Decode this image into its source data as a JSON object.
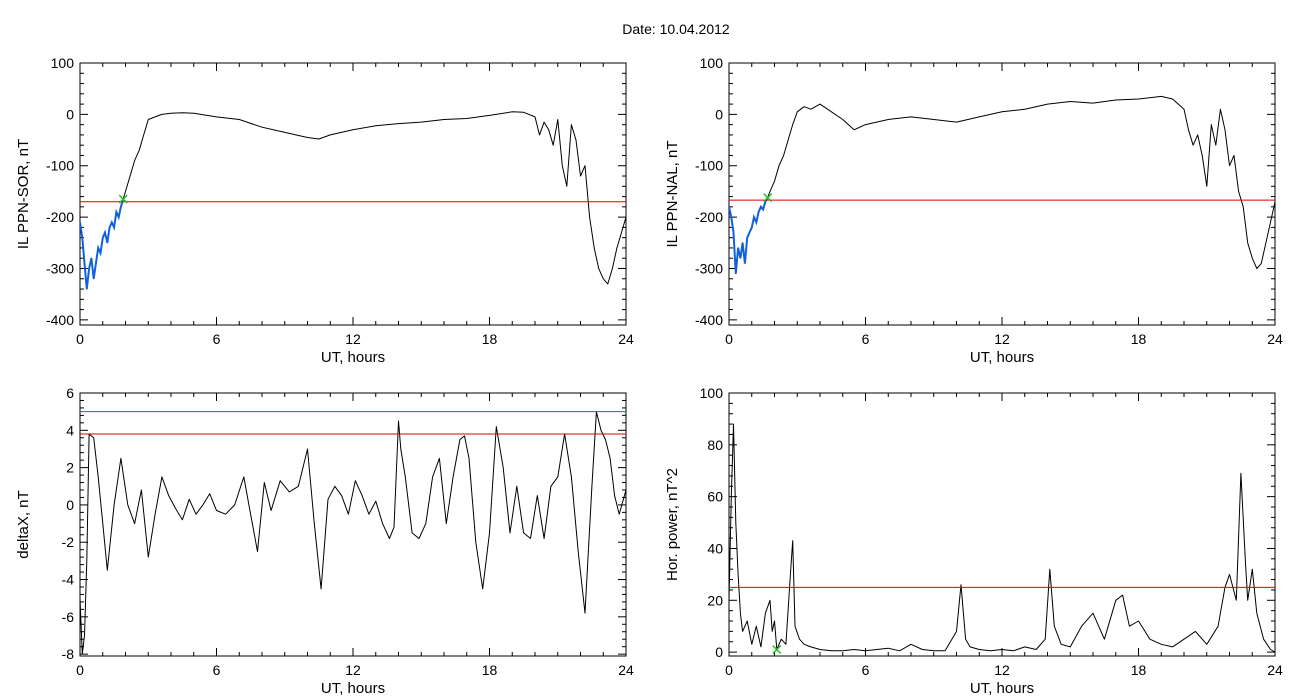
{
  "figure": {
    "title": "Date:  10.04.2012"
  },
  "colors": {
    "data": "#000000",
    "threshold": "#e00000",
    "highlight": "#1060e0",
    "marker": "#20c020",
    "upper_threshold": "#008080"
  },
  "chart_data": [
    {
      "id": "ppn-sor",
      "type": "line",
      "title": "",
      "xlabel": "UT, hours",
      "ylabel": "IL PPN-SOR, nT",
      "xlim": [
        0,
        24
      ],
      "ylim": [
        -410,
        100
      ],
      "xticks": [
        0,
        6,
        12,
        18,
        24
      ],
      "yticks": [
        -400,
        -300,
        -200,
        -100,
        0,
        100
      ],
      "grid": false,
      "threshold": -170,
      "highlight_range": [
        0,
        1.9
      ],
      "markers": [
        {
          "x": 1.9,
          "y": -165
        }
      ],
      "series": [
        {
          "x": [
            0,
            0.1,
            0.2,
            0.3,
            0.4,
            0.5,
            0.6,
            0.7,
            0.8,
            0.9,
            1.0,
            1.1,
            1.2,
            1.3,
            1.4,
            1.5,
            1.6,
            1.7,
            1.8,
            1.9,
            2.0,
            2.2,
            2.4,
            2.6,
            2.8,
            3.0,
            3.3,
            3.6,
            4.0,
            4.5,
            5.0,
            6.0,
            7.0,
            8.0,
            9.0,
            10.0,
            10.5,
            11.0,
            12.0,
            13.0,
            14.0,
            15.0,
            16.0,
            17.0,
            18.0,
            19.0,
            19.5,
            20.0,
            20.2,
            20.4,
            20.6,
            20.8,
            21.0,
            21.2,
            21.4,
            21.6,
            21.8,
            22.0,
            22.2,
            22.4,
            22.6,
            22.8,
            23.0,
            23.2,
            23.4,
            23.6,
            23.8,
            24.0
          ],
          "y": [
            -210,
            -240,
            -290,
            -340,
            -300,
            -280,
            -320,
            -290,
            -260,
            -270,
            -240,
            -230,
            -250,
            -220,
            -210,
            -220,
            -190,
            -200,
            -180,
            -165,
            -150,
            -120,
            -90,
            -70,
            -40,
            -10,
            -5,
            0,
            2,
            3,
            2,
            -5,
            -10,
            -25,
            -35,
            -45,
            -48,
            -40,
            -30,
            -22,
            -18,
            -15,
            -10,
            -8,
            -2,
            5,
            4,
            -5,
            -40,
            -15,
            -30,
            -60,
            -10,
            -100,
            -140,
            -20,
            -50,
            -120,
            -100,
            -200,
            -260,
            -300,
            -320,
            -330,
            -300,
            -260,
            -230,
            -200
          ]
        }
      ]
    },
    {
      "id": "ppn-nal",
      "type": "line",
      "title": "",
      "xlabel": "UT, hours",
      "ylabel": "IL PPN-NAL, nT",
      "xlim": [
        0,
        24
      ],
      "ylim": [
        -410,
        100
      ],
      "xticks": [
        0,
        6,
        12,
        18,
        24
      ],
      "yticks": [
        -400,
        -300,
        -200,
        -100,
        0,
        100
      ],
      "grid": false,
      "threshold": -167,
      "highlight_range": [
        0,
        1.7
      ],
      "markers": [
        {
          "x": 1.7,
          "y": -162
        }
      ],
      "series": [
        {
          "x": [
            0,
            0.1,
            0.2,
            0.3,
            0.4,
            0.5,
            0.6,
            0.7,
            0.8,
            0.9,
            1.0,
            1.1,
            1.2,
            1.3,
            1.4,
            1.5,
            1.6,
            1.7,
            1.8,
            2.0,
            2.2,
            2.4,
            2.6,
            2.8,
            3.0,
            3.3,
            3.6,
            4.0,
            4.5,
            5.0,
            5.5,
            6.0,
            7.0,
            8.0,
            9.0,
            10.0,
            11.0,
            12.0,
            13.0,
            14.0,
            15.0,
            16.0,
            17.0,
            18.0,
            19.0,
            19.5,
            20.0,
            20.2,
            20.4,
            20.6,
            20.8,
            21.0,
            21.2,
            21.4,
            21.6,
            21.8,
            22.0,
            22.2,
            22.4,
            22.6,
            22.8,
            23.0,
            23.2,
            23.4,
            23.6,
            23.8,
            24.0
          ],
          "y": [
            -180,
            -200,
            -230,
            -310,
            -260,
            -280,
            -250,
            -290,
            -240,
            -230,
            -220,
            -200,
            -210,
            -190,
            -180,
            -185,
            -170,
            -162,
            -150,
            -130,
            -100,
            -80,
            -50,
            -20,
            5,
            15,
            10,
            20,
            5,
            -10,
            -30,
            -20,
            -10,
            -5,
            -10,
            -15,
            -5,
            5,
            10,
            20,
            25,
            22,
            28,
            30,
            35,
            30,
            10,
            -30,
            -60,
            -40,
            -80,
            -140,
            -20,
            -60,
            10,
            -30,
            -100,
            -80,
            -150,
            -180,
            -250,
            -280,
            -300,
            -290,
            -250,
            -210,
            -170
          ]
        }
      ]
    },
    {
      "id": "deltax",
      "type": "line",
      "title": "",
      "xlabel": "UT, hours",
      "ylabel": "deltaX, nT",
      "xlim": [
        0,
        24
      ],
      "ylim": [
        -8.1,
        6
      ],
      "xticks": [
        0,
        6,
        12,
        18,
        24
      ],
      "yticks": [
        -8,
        -6,
        -4,
        -2,
        0,
        2,
        4,
        6
      ],
      "grid": false,
      "threshold": 3.8,
      "upper_threshold": 5.0,
      "series": [
        {
          "x": [
            0,
            0.1,
            0.2,
            0.3,
            0.4,
            0.6,
            0.8,
            1.0,
            1.2,
            1.5,
            1.8,
            2.1,
            2.4,
            2.7,
            3.0,
            3.3,
            3.6,
            3.9,
            4.2,
            4.5,
            4.8,
            5.1,
            5.4,
            5.7,
            6.0,
            6.4,
            6.8,
            7.2,
            7.5,
            7.8,
            8.1,
            8.4,
            8.8,
            9.2,
            9.6,
            10.0,
            10.3,
            10.6,
            10.9,
            11.2,
            11.5,
            11.8,
            12.1,
            12.4,
            12.7,
            13.0,
            13.3,
            13.6,
            13.8,
            14.0,
            14.1,
            14.3,
            14.6,
            14.9,
            15.2,
            15.5,
            15.8,
            16.1,
            16.4,
            16.7,
            16.9,
            17.1,
            17.4,
            17.7,
            18.0,
            18.3,
            18.6,
            18.9,
            19.2,
            19.5,
            19.8,
            20.1,
            20.4,
            20.7,
            21.0,
            21.3,
            21.6,
            21.9,
            22.2,
            22.5,
            22.7,
            22.9,
            23.1,
            23.3,
            23.5,
            23.7,
            24.0
          ],
          "y": [
            -5,
            -8,
            -7,
            -3,
            3.8,
            3.6,
            1.5,
            -1,
            -3.5,
            0,
            2.5,
            0,
            -1,
            0.8,
            -2.8,
            -0.5,
            1.5,
            0.5,
            -0.2,
            -0.8,
            0.3,
            -0.5,
            0,
            0.6,
            -0.3,
            -0.5,
            0,
            1.5,
            -0.5,
            -2.5,
            1.2,
            -0.3,
            1.3,
            0.7,
            1.0,
            3,
            -1,
            -4.5,
            0.3,
            1,
            0.5,
            -0.5,
            1.3,
            0.5,
            -0.5,
            0.2,
            -1,
            -1.8,
            -1.2,
            4.5,
            3,
            1.5,
            -1.5,
            -1.8,
            -1,
            1.5,
            2.5,
            -1,
            1.5,
            3.5,
            3.7,
            2.5,
            -2,
            -4.5,
            -1.5,
            4.2,
            2,
            -1.5,
            1,
            -1.5,
            -1.8,
            0.5,
            -1.8,
            1,
            1.5,
            3.8,
            1.5,
            -2.5,
            -5.8,
            1,
            5.0,
            4,
            3.5,
            2.5,
            0.5,
            -0.5,
            0.8
          ]
        }
      ]
    },
    {
      "id": "hor-power",
      "type": "line",
      "title": "",
      "xlabel": "UT, hours",
      "ylabel": "Hor. power, nT^2",
      "xlim": [
        0,
        24
      ],
      "ylim": [
        -1.5,
        100
      ],
      "xticks": [
        0,
        6,
        12,
        18,
        24
      ],
      "yticks": [
        0,
        20,
        40,
        60,
        80,
        100
      ],
      "grid": false,
      "threshold": 25,
      "markers": [
        {
          "x": 2.1,
          "y": 1
        }
      ],
      "series": [
        {
          "x": [
            0,
            0.1,
            0.2,
            0.3,
            0.4,
            0.5,
            0.6,
            0.8,
            1.0,
            1.2,
            1.4,
            1.6,
            1.8,
            1.9,
            2.0,
            2.1,
            2.3,
            2.5,
            2.7,
            2.8,
            2.9,
            3.1,
            3.3,
            3.6,
            4.0,
            4.5,
            5.0,
            5.5,
            6.0,
            6.5,
            7.0,
            7.5,
            8.0,
            8.5,
            9.0,
            9.5,
            10.0,
            10.2,
            10.4,
            10.6,
            11.0,
            11.5,
            12.0,
            12.5,
            13.0,
            13.5,
            13.9,
            14.1,
            14.3,
            14.6,
            15.0,
            15.5,
            16.0,
            16.5,
            17.0,
            17.3,
            17.6,
            18.0,
            18.5,
            19.0,
            19.5,
            20.0,
            20.5,
            21.0,
            21.5,
            21.8,
            22.0,
            22.3,
            22.5,
            22.7,
            22.8,
            23.0,
            23.2,
            23.5,
            23.8,
            24.0
          ],
          "y": [
            20,
            60,
            88,
            50,
            30,
            15,
            8,
            12,
            3,
            10,
            2,
            15,
            20,
            8,
            12,
            1,
            5,
            3,
            30,
            43,
            10,
            5,
            3,
            2,
            1,
            0.5,
            0.5,
            1,
            0.5,
            1,
            1.5,
            0.5,
            3,
            1,
            0.5,
            0.5,
            8,
            26,
            5,
            2,
            1,
            0.5,
            1,
            0.5,
            2,
            1,
            5,
            32,
            10,
            3,
            2,
            10,
            15,
            5,
            20,
            22,
            10,
            12,
            5,
            3,
            2,
            5,
            8,
            3,
            10,
            25,
            30,
            20,
            69,
            35,
            20,
            32,
            15,
            5,
            1,
            0
          ]
        }
      ]
    }
  ]
}
